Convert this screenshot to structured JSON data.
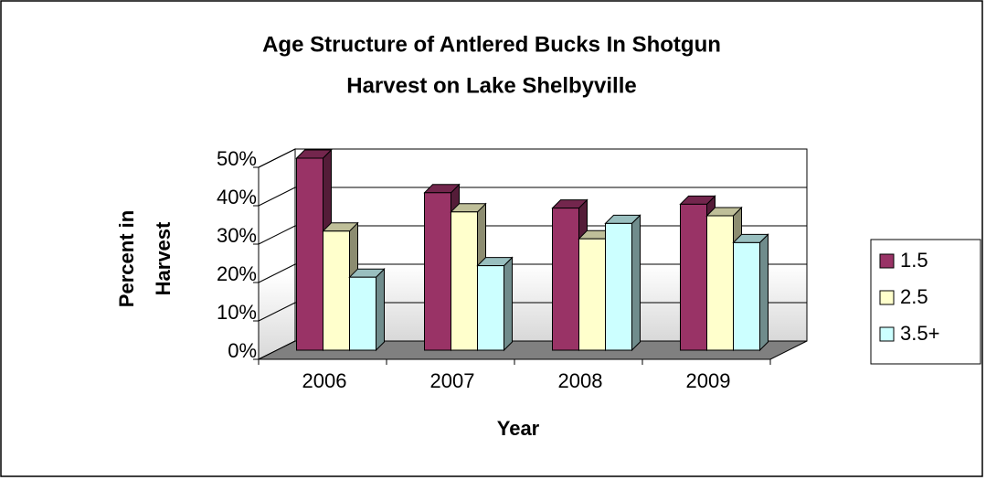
{
  "chart_data": {
    "type": "bar3d",
    "title": [
      "Age Structure of Antlered Bucks In Shotgun",
      "Harvest on Lake Shelbyville"
    ],
    "x_label": "Year",
    "y_label": [
      "Percent in",
      "Harvest"
    ],
    "categories": [
      "2006",
      "2007",
      "2008",
      "2009"
    ],
    "series": [
      {
        "name": "1.5",
        "color": "#993366",
        "values": [
          50,
          41,
          37,
          38
        ]
      },
      {
        "name": "2.5",
        "color": "#ffffcc",
        "values": [
          31,
          36,
          29,
          35
        ]
      },
      {
        "name": "3.5+",
        "color": "#ccffff",
        "values": [
          19,
          22,
          33,
          28
        ]
      }
    ],
    "ylim": [
      0,
      50
    ],
    "yticks": [
      {
        "value": 0,
        "label": "0%"
      },
      {
        "value": 10,
        "label": "10%"
      },
      {
        "value": 20,
        "label": "20%"
      },
      {
        "value": 30,
        "label": "30%"
      },
      {
        "value": 40,
        "label": "40%"
      },
      {
        "value": 50,
        "label": "50%"
      }
    ],
    "grid": true,
    "legend": "right"
  }
}
